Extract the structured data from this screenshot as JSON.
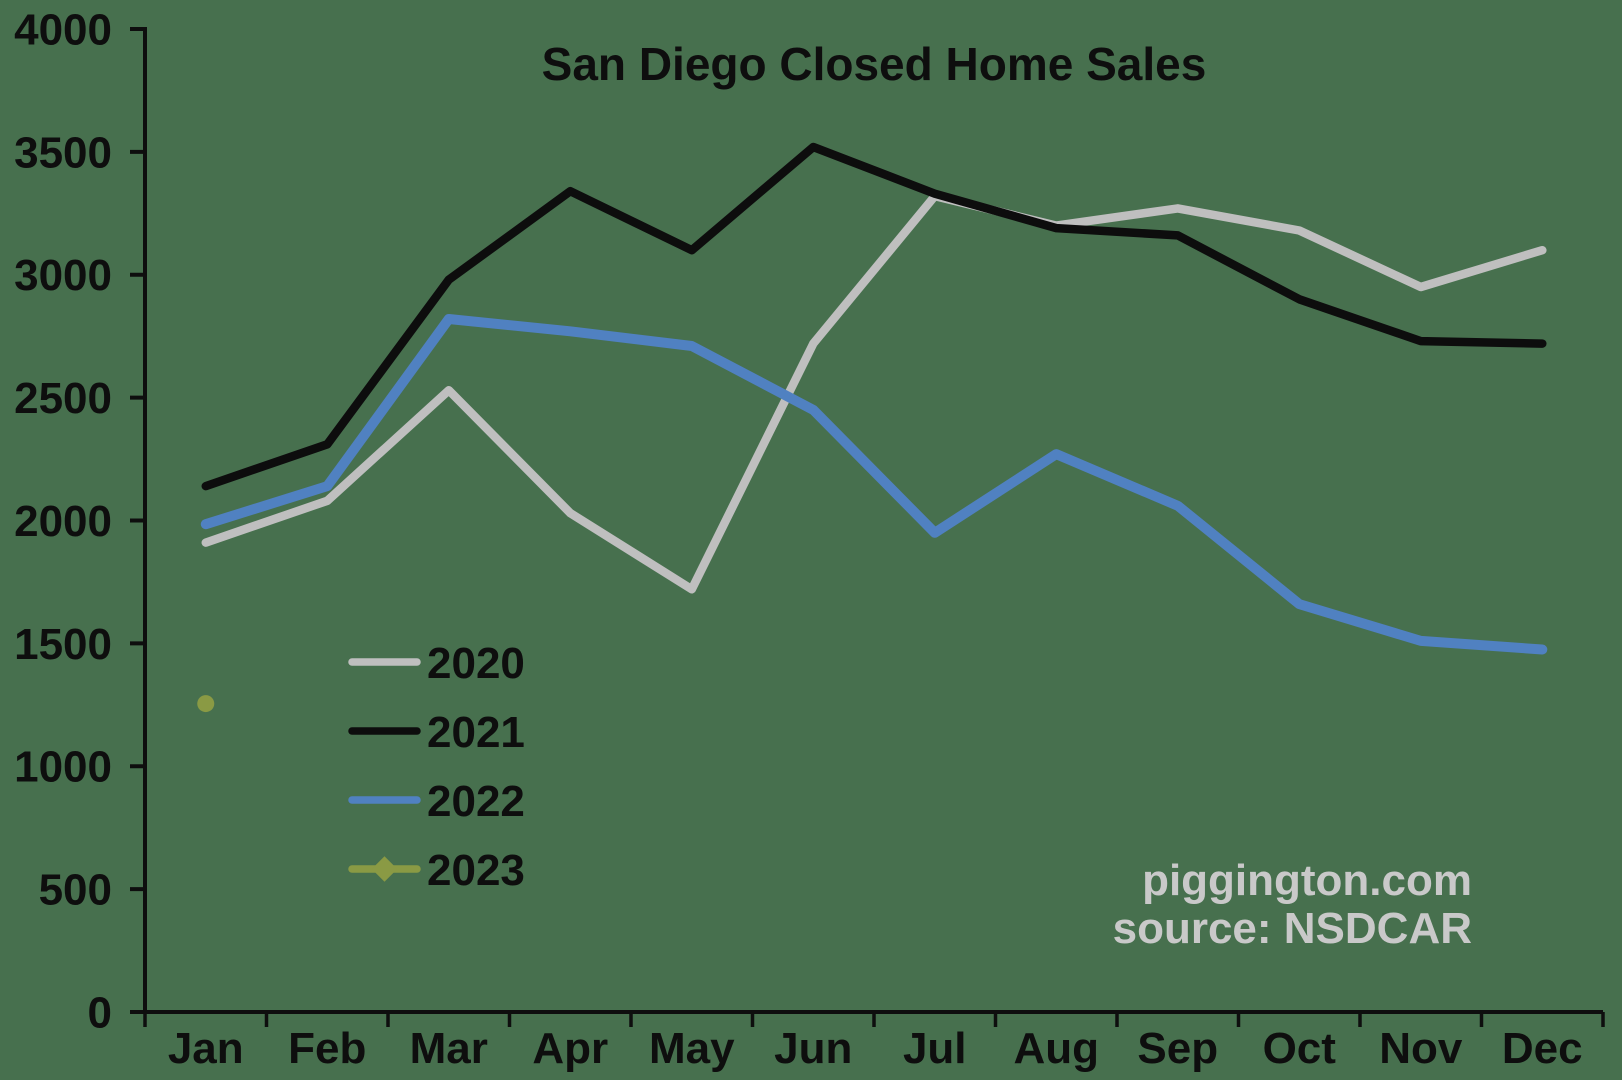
{
  "title_block": {
    "title": "San Diego Closed Home Sales"
  },
  "watermark": {
    "line1": "piggington.com",
    "line2": "source: NSDCAR",
    "color": "#c9c9c9"
  },
  "axes": {
    "y_tick_values": [
      0,
      500,
      1000,
      1500,
      2000,
      2500,
      3000,
      3500,
      4000
    ],
    "axis_color": "#0e0e0e"
  },
  "chart_data": {
    "type": "line",
    "title": "San Diego Closed Home Sales",
    "categories": [
      "Jan",
      "Feb",
      "Mar",
      "Apr",
      "May",
      "Jun",
      "Jul",
      "Aug",
      "Sep",
      "Oct",
      "Nov",
      "Dec"
    ],
    "series": [
      {
        "name": "2020",
        "color": "#bfbfbf",
        "values": [
          1910,
          2080,
          2530,
          2030,
          1720,
          2720,
          3320,
          3200,
          3270,
          3180,
          2950,
          3100
        ]
      },
      {
        "name": "2021",
        "color": "#0d0d0d",
        "values": [
          2140,
          2310,
          2980,
          3340,
          3100,
          3520,
          3330,
          3190,
          3160,
          2900,
          2730,
          2720
        ]
      },
      {
        "name": "2022",
        "color": "#5081c1",
        "values": [
          1985,
          2140,
          2820,
          2770,
          2710,
          2450,
          1950,
          2270,
          2060,
          1660,
          1510,
          1475
        ]
      },
      {
        "name": "2023",
        "color": "#8a9a44",
        "marker": "diamond",
        "values": [
          1255,
          null,
          null,
          null,
          null,
          null,
          null,
          null,
          null,
          null,
          null,
          null
        ]
      }
    ],
    "xlabel": "",
    "ylabel": "",
    "ylim": [
      0,
      4000
    ],
    "ytick_step": 500,
    "grid": false,
    "legend_position": "lower-left",
    "background_color": "#47704E"
  }
}
